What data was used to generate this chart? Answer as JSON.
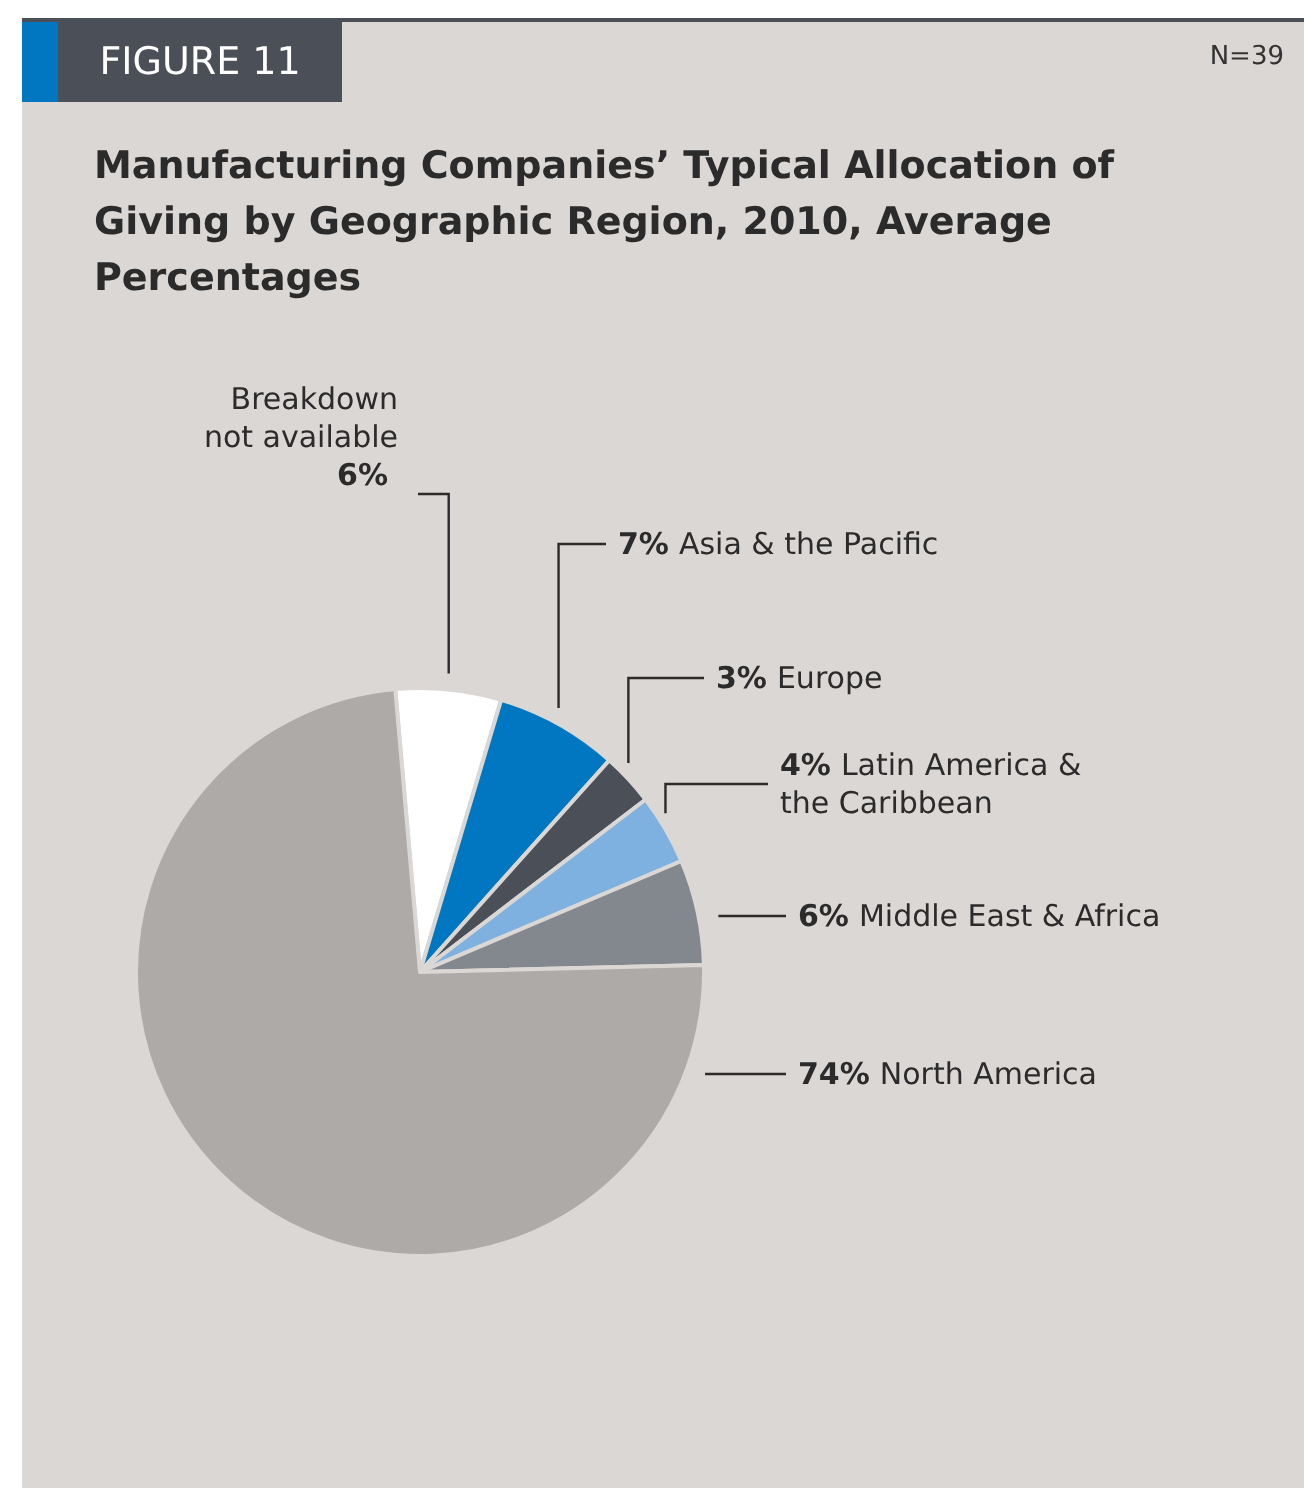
{
  "chart_data": {
    "type": "pie",
    "title": "Manufacturing Companies’ Typical Allocation of Giving by Geographic Region, 2010, Average Percentages",
    "annotations": [
      "FIGURE 11",
      "N=39"
    ],
    "categories": [
      "Breakdown not available",
      "Asia & the Pacific",
      "Europe",
      "Latin America & the Caribbean",
      "Middle East & Africa",
      "North America"
    ],
    "values": [
      6,
      7,
      3,
      4,
      6,
      74
    ],
    "value_labels": [
      "6%",
      "7%",
      "3%",
      "4%",
      "6%",
      "74%"
    ],
    "colors": [
      "#ffffff",
      "#0077c0",
      "#4a4f58",
      "#7eb0e0",
      "#83878e",
      "#aeaaa7"
    ],
    "legend": false
  }
}
